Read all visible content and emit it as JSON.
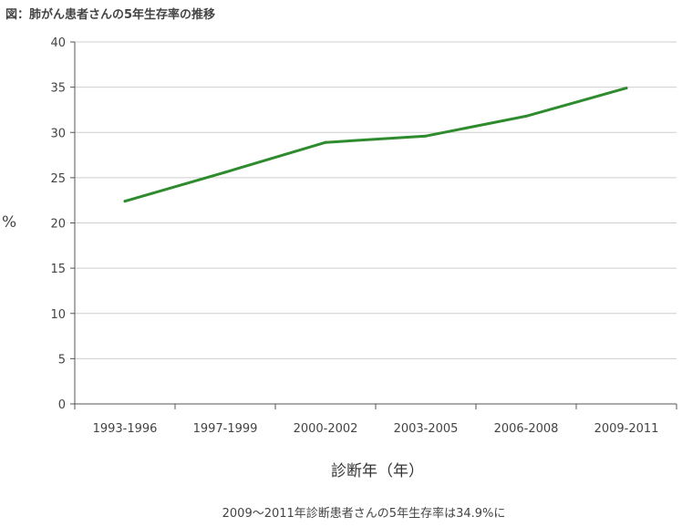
{
  "chart_data": {
    "type": "line",
    "title": "図：肺がん患者さんの5年生存率の推移",
    "xlabel": "診断年（年）",
    "ylabel": "%",
    "categories": [
      "1993-1996",
      "1997-1999",
      "2000-2002",
      "2003-2005",
      "2006-2008",
      "2009-2011"
    ],
    "series": [
      {
        "values": [
          22.4,
          25.6,
          28.9,
          29.6,
          31.8,
          34.9
        ],
        "color": "#2e8b2e"
      }
    ],
    "ylim": [
      0,
      40
    ],
    "yticks": [
      0,
      5,
      10,
      15,
      20,
      25,
      30,
      35,
      40
    ],
    "grid": true,
    "legend": "none",
    "caption": "2009〜2011年診断患者さんの5年生存率は34.9%に"
  }
}
